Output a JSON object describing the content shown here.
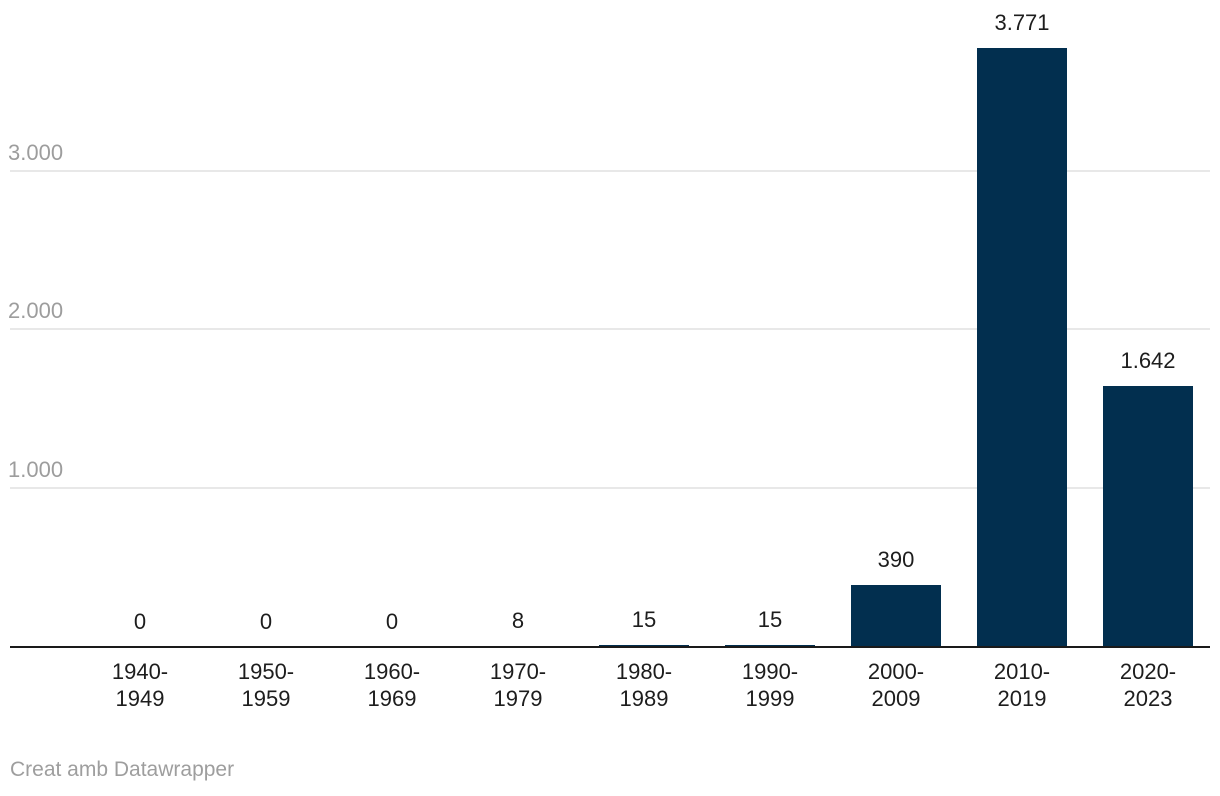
{
  "chart_data": {
    "type": "bar",
    "title": "",
    "categories": [
      "1940-1949",
      "1950-1959",
      "1960-1969",
      "1970-1979",
      "1980-1989",
      "1990-1999",
      "2000-2009",
      "2010-2019",
      "2020-2023"
    ],
    "values": [
      0,
      0,
      0,
      8,
      15,
      15,
      390,
      3771,
      1642
    ],
    "value_labels": [
      "0",
      "0",
      "0",
      "8",
      "15",
      "15",
      "390",
      "3.771",
      "1.642"
    ],
    "xlabel": "",
    "ylabel": "",
    "ylim": [
      0,
      3800
    ],
    "y_axis": {
      "ticks": [
        {
          "value": 1000,
          "label": "1.000"
        },
        {
          "value": 2000,
          "label": "2.000"
        },
        {
          "value": 3000,
          "label": "3.000"
        }
      ]
    },
    "grid": "horizontal",
    "legend_position": "none",
    "bar_color": "#022f4f",
    "gridline_color": "#e8e8e8",
    "axis_line_color": "#1a1a1a",
    "value_label_color": "#1d1d1d",
    "tick_label_color": "#9d9d9d"
  },
  "footer": {
    "attribution": "Creat amb Datawrapper"
  }
}
